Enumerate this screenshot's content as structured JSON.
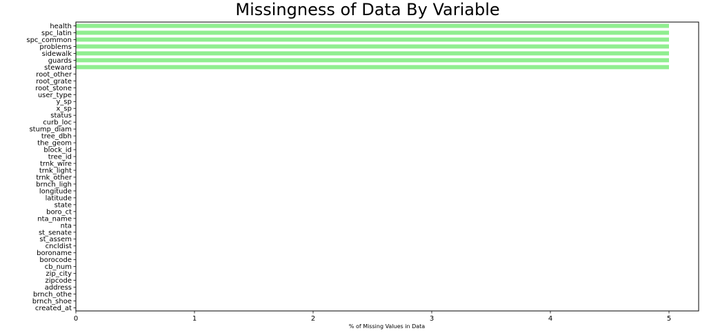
{
  "chart_data": {
    "type": "bar",
    "orientation": "horizontal",
    "title": "Missingness of Data By Variable",
    "xlabel": "% of Missing Values in Data",
    "ylabel": "",
    "xlim": [
      0,
      5.25
    ],
    "xticks": [
      0,
      1,
      2,
      3,
      4,
      5
    ],
    "grid": false,
    "bar_color": "#90ee90",
    "categories": [
      "health",
      "spc_latin",
      "spc_common",
      "problems",
      "sidewalk",
      "guards",
      "steward",
      "root_other",
      "root_grate",
      "root_stone",
      "user_type",
      "y_sp",
      "x_sp",
      "status",
      "curb_loc",
      "stump_diam",
      "tree_dbh",
      "the_geom",
      "block_id",
      "tree_id",
      "trnk_wire",
      "trnk_light",
      "trnk_other",
      "brnch_ligh",
      "longitude",
      "latitude",
      "state",
      "boro_ct",
      "nta_name",
      "nta",
      "st_senate",
      "st_assem",
      "cncldist",
      "boroname",
      "borocode",
      "cb_num",
      "zip_city",
      "zipcode",
      "address",
      "brnch_othe",
      "brnch_shoe",
      "created_at"
    ],
    "values": [
      5,
      5,
      5,
      5,
      5,
      5,
      5,
      0,
      0,
      0,
      0,
      0,
      0,
      0,
      0,
      0,
      0,
      0,
      0,
      0,
      0,
      0,
      0,
      0,
      0,
      0,
      0,
      0,
      0,
      0,
      0,
      0,
      0,
      0,
      0,
      0,
      0,
      0,
      0,
      0,
      0,
      0
    ]
  }
}
